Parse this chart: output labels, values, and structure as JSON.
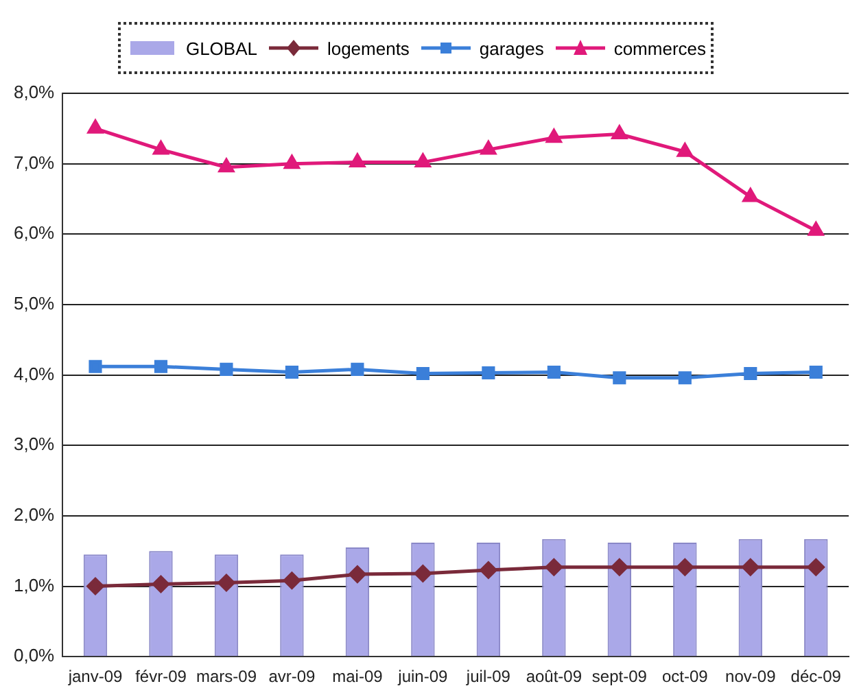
{
  "chart_data": {
    "type": "bar",
    "categories": [
      "janv-09",
      "févr-09",
      "mars-09",
      "avr-09",
      "mai-09",
      "juin-09",
      "juil-09",
      "août-09",
      "sept-09",
      "oct-09",
      "nov-09",
      "déc-09"
    ],
    "series": [
      {
        "name": "GLOBAL",
        "color": "#aaa8e8",
        "values": [
          1.45,
          1.5,
          1.45,
          1.45,
          1.55,
          1.62,
          1.62,
          1.67,
          1.62,
          1.62,
          1.67,
          1.67
        ]
      },
      {
        "name": "logements",
        "type": "line",
        "color": "#7a2a3a",
        "marker": "diamond",
        "values": [
          1.0,
          1.03,
          1.05,
          1.08,
          1.17,
          1.18,
          1.23,
          1.27,
          1.27,
          1.27,
          1.27,
          1.27
        ]
      },
      {
        "name": "garages",
        "type": "line",
        "color": "#3b7fd9",
        "marker": "square",
        "values": [
          4.12,
          4.12,
          4.08,
          4.04,
          4.08,
          4.02,
          4.03,
          4.04,
          3.96,
          3.96,
          4.02,
          4.04
        ]
      },
      {
        "name": "commerces",
        "type": "line",
        "color": "#e0197a",
        "marker": "triangle",
        "values": [
          7.5,
          7.2,
          6.95,
          7.0,
          7.02,
          7.02,
          7.2,
          7.37,
          7.42,
          7.17,
          6.53,
          6.05
        ]
      }
    ],
    "ylim": [
      0,
      8
    ],
    "yticks": [
      {
        "value": 0,
        "label": "0,0%"
      },
      {
        "value": 1,
        "label": "1,0%"
      },
      {
        "value": 2,
        "label": "2,0%"
      },
      {
        "value": 3,
        "label": "3,0%"
      },
      {
        "value": 4,
        "label": "4,0%"
      },
      {
        "value": 5,
        "label": "5,0%"
      },
      {
        "value": 6,
        "label": "6,0%"
      },
      {
        "value": 7,
        "label": "7,0%"
      },
      {
        "value": 8,
        "label": "8,0%"
      }
    ],
    "grid": "y",
    "legend": "top"
  }
}
